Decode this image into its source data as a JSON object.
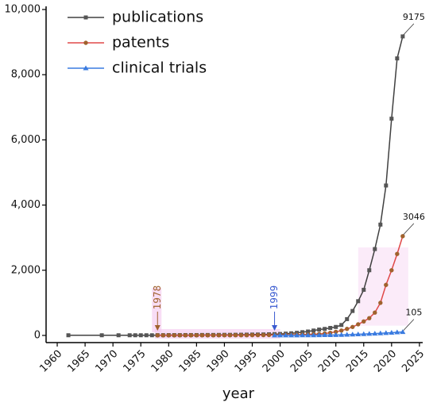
{
  "chart_data": {
    "type": "line",
    "x_label": "year",
    "xlim": [
      1958,
      2025.3
    ],
    "xticks": [
      1960,
      1965,
      1970,
      1975,
      1980,
      1985,
      1990,
      1995,
      2000,
      2005,
      2010,
      2015,
      2020,
      2025
    ],
    "ylim": [
      -220,
      10000
    ],
    "yticks": [
      0,
      {
        "value": 2000,
        "label": "2,000"
      },
      {
        "value": 4000,
        "label": "4,000"
      },
      {
        "value": 6000,
        "label": "6,000"
      },
      {
        "value": 8000,
        "label": "8,000"
      },
      {
        "value": 10000,
        "label": "10,000"
      }
    ],
    "legend": "upper left",
    "series": [
      {
        "name": "publications",
        "color": "#404040",
        "marker_color": "#555555",
        "marker": "square",
        "x": [
          1962,
          1968,
          1971,
          1973,
          1974,
          1975,
          1976,
          1977,
          1978,
          1979,
          1980,
          1981,
          1982,
          1983,
          1984,
          1985,
          1986,
          1987,
          1988,
          1989,
          1990,
          1991,
          1992,
          1993,
          1994,
          1995,
          1996,
          1997,
          1998,
          1999,
          2000,
          2001,
          2002,
          2003,
          2004,
          2005,
          2006,
          2007,
          2008,
          2009,
          2010,
          2011,
          2012,
          2013,
          2014,
          2015,
          2016,
          2017,
          2018,
          2019,
          2020,
          2021,
          2022
        ],
        "values": [
          5,
          5,
          5,
          5,
          5,
          5,
          5,
          5,
          8,
          8,
          10,
          10,
          10,
          12,
          12,
          12,
          14,
          14,
          15,
          16,
          18,
          18,
          20,
          22,
          24,
          26,
          28,
          30,
          35,
          40,
          45,
          55,
          65,
          80,
          100,
          120,
          150,
          180,
          200,
          230,
          260,
          320,
          500,
          750,
          1050,
          1400,
          2000,
          2650,
          3400,
          4600,
          6650,
          8500,
          9175
        ],
        "value_labels": [
          null,
          null,
          null,
          null,
          null,
          null,
          null,
          null,
          null,
          null,
          null,
          null,
          null,
          null,
          null,
          null,
          null,
          null,
          null,
          null,
          null,
          null,
          null,
          null,
          null,
          null,
          null,
          null,
          null,
          null,
          null,
          null,
          null,
          null,
          null,
          null,
          null,
          null,
          null,
          null,
          null,
          null,
          null,
          null,
          null,
          null,
          null,
          null,
          null,
          null,
          null,
          null,
          "9175"
        ]
      },
      {
        "name": "patents",
        "color": "#e04848",
        "marker_color": "#a0622d",
        "marker": "circle",
        "x": [
          1978,
          1979,
          1980,
          1981,
          1982,
          1983,
          1984,
          1985,
          1986,
          1987,
          1988,
          1989,
          1990,
          1991,
          1992,
          1993,
          1994,
          1995,
          1996,
          1997,
          1998,
          1999,
          2000,
          2001,
          2002,
          2003,
          2004,
          2005,
          2006,
          2007,
          2008,
          2009,
          2010,
          2011,
          2012,
          2013,
          2014,
          2015,
          2016,
          2017,
          2018,
          2019,
          2020,
          2021,
          2022
        ],
        "values": [
          2,
          2,
          2,
          2,
          3,
          3,
          3,
          3,
          4,
          4,
          4,
          5,
          5,
          5,
          6,
          6,
          7,
          8,
          9,
          10,
          12,
          14,
          16,
          18,
          20,
          24,
          28,
          32,
          38,
          45,
          60,
          80,
          110,
          150,
          200,
          260,
          340,
          430,
          530,
          700,
          1000,
          1550,
          2000,
          2500,
          3046
        ],
        "value_labels": [
          null,
          null,
          null,
          null,
          null,
          null,
          null,
          null,
          null,
          null,
          null,
          null,
          null,
          null,
          null,
          null,
          null,
          null,
          null,
          null,
          null,
          null,
          null,
          null,
          null,
          null,
          null,
          null,
          null,
          null,
          null,
          null,
          null,
          null,
          null,
          null,
          null,
          null,
          null,
          null,
          null,
          null,
          null,
          null,
          "3046"
        ]
      },
      {
        "name": "clinical trials",
        "color": "#3a7be0",
        "marker_color": "#3a7be0",
        "marker": "triangle",
        "x": [
          1999,
          2000,
          2001,
          2002,
          2003,
          2004,
          2005,
          2006,
          2007,
          2008,
          2009,
          2010,
          2011,
          2012,
          2013,
          2014,
          2015,
          2016,
          2017,
          2018,
          2019,
          2020,
          2021,
          2022
        ],
        "values": [
          1,
          1,
          2,
          2,
          3,
          4,
          5,
          6,
          8,
          10,
          12,
          15,
          18,
          22,
          28,
          35,
          42,
          50,
          58,
          66,
          75,
          85,
          95,
          105
        ],
        "value_labels": [
          null,
          null,
          null,
          null,
          null,
          null,
          null,
          null,
          null,
          null,
          null,
          null,
          null,
          null,
          null,
          null,
          null,
          null,
          null,
          null,
          null,
          null,
          null,
          "105"
        ]
      }
    ],
    "annotations": [
      {
        "label": "1978",
        "x": 1978,
        "color": "#a0622d"
      },
      {
        "label": "1999",
        "x": 1999,
        "color": "#3a5bd0"
      }
    ]
  }
}
